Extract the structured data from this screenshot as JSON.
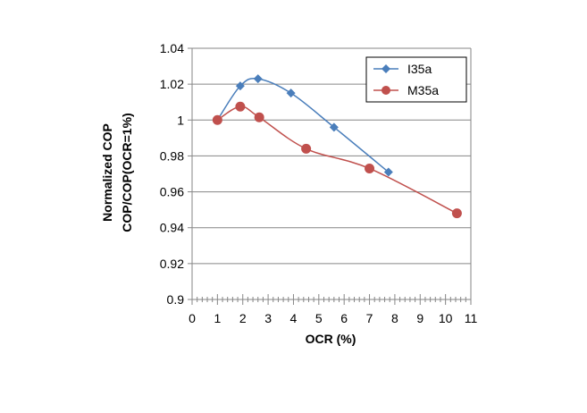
{
  "chart_data": {
    "type": "line",
    "title": "",
    "xlabel": "OCR (%)",
    "ylabel_lines": [
      "Normalized COP",
      "COP/COP(OCR=1%)"
    ],
    "xlim": [
      0,
      11
    ],
    "ylim": [
      0.9,
      1.04
    ],
    "x_ticks": [
      "0",
      "1",
      "2",
      "3",
      "4",
      "5",
      "6",
      "7",
      "8",
      "9",
      "10",
      "11"
    ],
    "y_ticks": [
      "0.9",
      "0.92",
      "0.94",
      "0.96",
      "0.98",
      "1",
      "1.02",
      "1.04"
    ],
    "grid": "horizontal",
    "legend_position": "top-right",
    "series": [
      {
        "name": "I35a",
        "color": "#4a7ebb",
        "marker": "diamond",
        "x": [
          1.0,
          1.9,
          2.6,
          3.9,
          5.6,
          7.75
        ],
        "y": [
          1.0,
          1.019,
          1.023,
          1.015,
          0.996,
          0.971
        ]
      },
      {
        "name": "M35a",
        "color": "#c0504d",
        "marker": "circle",
        "x": [
          1.0,
          1.9,
          2.65,
          4.5,
          7.0,
          10.45
        ],
        "y": [
          1.0,
          1.0075,
          1.0015,
          0.984,
          0.973,
          0.948
        ]
      }
    ]
  }
}
